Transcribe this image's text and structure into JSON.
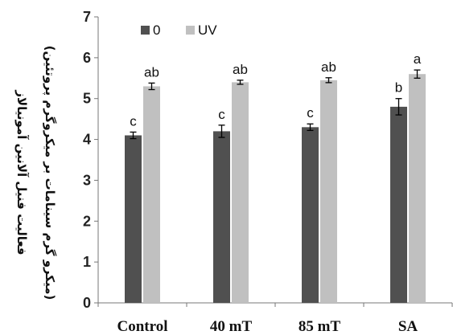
{
  "chart_data": {
    "type": "bar",
    "categories": [
      "Control",
      "40 mT",
      "85 mT",
      "SA"
    ],
    "series": [
      {
        "name": "0",
        "color": "#505050",
        "values": [
          4.1,
          4.2,
          4.3,
          4.8
        ],
        "errors": [
          0.08,
          0.15,
          0.08,
          0.2
        ],
        "letters": [
          "c",
          "c",
          "c",
          "b"
        ]
      },
      {
        "name": "UV",
        "color": "#c0c0c0",
        "values": [
          5.3,
          5.4,
          5.45,
          5.6
        ],
        "errors": [
          0.08,
          0.05,
          0.06,
          0.1
        ],
        "letters": [
          "ab",
          "ab",
          "ab",
          "a"
        ]
      }
    ],
    "ylim": [
      0,
      7
    ],
    "yticks": [
      0,
      1,
      2,
      3,
      4,
      5,
      6,
      7
    ],
    "ylabel_line1": "فعالیت فنیل آلانین آمونیالاز",
    "ylabel_line2": "(میکرو گرم سینامات بر میکروگرم پروتئین)",
    "legend_position": "top-left",
    "grid": false
  }
}
